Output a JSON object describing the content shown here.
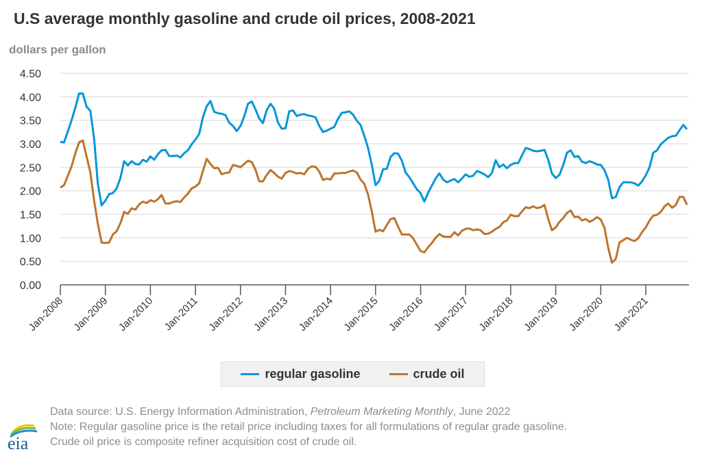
{
  "chart_data": {
    "type": "line",
    "title": "U.S average monthly gasoline and crude oil prices, 2008-2021",
    "ylabel": "dollars per gallon",
    "xlabel": "",
    "ylim": [
      0,
      4.5
    ],
    "yticks": [
      "0.00",
      "0.50",
      "1.00",
      "1.50",
      "2.00",
      "2.50",
      "3.00",
      "3.50",
      "4.00",
      "4.50"
    ],
    "ytick_values": [
      0,
      0.5,
      1.0,
      1.5,
      2.0,
      2.5,
      3.0,
      3.5,
      4.0,
      4.5
    ],
    "xticks": [
      "Jan-2008",
      "Jan-2009",
      "Jan-2010",
      "Jan-2011",
      "Jan-2012",
      "Jan-2013",
      "Jan-2014",
      "Jan-2015",
      "Jan-2016",
      "Jan-2017",
      "Jan-2018",
      "Jan-2019",
      "Jan-2020",
      "Jan-2021"
    ],
    "x_start": "Jan-2008",
    "x_end": "Dec-2021",
    "frequency": "monthly",
    "grid": true,
    "legend_position": "bottom-center",
    "series": [
      {
        "name": "regular gasoline",
        "color": "#0096d7",
        "values": [
          3.04,
          3.03,
          3.26,
          3.5,
          3.77,
          4.07,
          4.07,
          3.79,
          3.7,
          3.11,
          2.15,
          1.69,
          1.79,
          1.93,
          1.95,
          2.05,
          2.27,
          2.63,
          2.54,
          2.63,
          2.57,
          2.56,
          2.66,
          2.62,
          2.73,
          2.66,
          2.78,
          2.86,
          2.87,
          2.74,
          2.74,
          2.75,
          2.71,
          2.8,
          2.86,
          2.99,
          3.09,
          3.21,
          3.56,
          3.8,
          3.91,
          3.68,
          3.65,
          3.64,
          3.61,
          3.45,
          3.38,
          3.27,
          3.38,
          3.58,
          3.85,
          3.9,
          3.73,
          3.54,
          3.44,
          3.72,
          3.85,
          3.75,
          3.45,
          3.32,
          3.33,
          3.69,
          3.71,
          3.59,
          3.62,
          3.63,
          3.6,
          3.59,
          3.56,
          3.38,
          3.25,
          3.28,
          3.32,
          3.36,
          3.53,
          3.66,
          3.67,
          3.69,
          3.62,
          3.49,
          3.4,
          3.17,
          2.91,
          2.55,
          2.12,
          2.21,
          2.46,
          2.47,
          2.72,
          2.8,
          2.79,
          2.64,
          2.39,
          2.29,
          2.16,
          2.03,
          1.95,
          1.77,
          1.96,
          2.11,
          2.26,
          2.37,
          2.24,
          2.18,
          2.22,
          2.25,
          2.18,
          2.26,
          2.35,
          2.3,
          2.32,
          2.42,
          2.39,
          2.35,
          2.29,
          2.38,
          2.65,
          2.5,
          2.56,
          2.48,
          2.55,
          2.59,
          2.59,
          2.75,
          2.91,
          2.89,
          2.85,
          2.84,
          2.85,
          2.87,
          2.66,
          2.37,
          2.27,
          2.34,
          2.55,
          2.81,
          2.86,
          2.72,
          2.74,
          2.62,
          2.59,
          2.63,
          2.6,
          2.56,
          2.55,
          2.44,
          2.23,
          1.84,
          1.87,
          2.08,
          2.18,
          2.18,
          2.18,
          2.16,
          2.11,
          2.2,
          2.33,
          2.5,
          2.81,
          2.86,
          2.99,
          3.06,
          3.13,
          3.16,
          3.17,
          3.29,
          3.4,
          3.31
        ]
      },
      {
        "name": "crude oil",
        "color": "#bd732a",
        "values": [
          2.07,
          2.12,
          2.32,
          2.52,
          2.8,
          3.03,
          3.07,
          2.73,
          2.39,
          1.79,
          1.3,
          0.9,
          0.89,
          0.9,
          1.07,
          1.14,
          1.31,
          1.55,
          1.51,
          1.63,
          1.6,
          1.71,
          1.77,
          1.74,
          1.8,
          1.77,
          1.82,
          1.91,
          1.73,
          1.73,
          1.76,
          1.78,
          1.76,
          1.86,
          1.94,
          2.05,
          2.09,
          2.16,
          2.42,
          2.68,
          2.57,
          2.48,
          2.49,
          2.35,
          2.38,
          2.39,
          2.55,
          2.53,
          2.5,
          2.57,
          2.64,
          2.61,
          2.45,
          2.2,
          2.2,
          2.34,
          2.44,
          2.38,
          2.3,
          2.26,
          2.38,
          2.42,
          2.4,
          2.37,
          2.38,
          2.35,
          2.47,
          2.52,
          2.51,
          2.41,
          2.23,
          2.26,
          2.24,
          2.37,
          2.37,
          2.38,
          2.38,
          2.41,
          2.43,
          2.39,
          2.24,
          2.15,
          1.92,
          1.56,
          1.13,
          1.17,
          1.14,
          1.27,
          1.4,
          1.42,
          1.24,
          1.07,
          1.07,
          1.07,
          0.99,
          0.85,
          0.72,
          0.69,
          0.8,
          0.89,
          1.0,
          1.08,
          1.03,
          1.02,
          1.02,
          1.12,
          1.05,
          1.15,
          1.19,
          1.2,
          1.16,
          1.18,
          1.16,
          1.08,
          1.09,
          1.13,
          1.19,
          1.23,
          1.33,
          1.37,
          1.49,
          1.46,
          1.46,
          1.56,
          1.65,
          1.63,
          1.67,
          1.63,
          1.65,
          1.7,
          1.4,
          1.16,
          1.22,
          1.34,
          1.42,
          1.53,
          1.58,
          1.44,
          1.45,
          1.37,
          1.4,
          1.34,
          1.38,
          1.44,
          1.39,
          1.21,
          0.78,
          0.47,
          0.55,
          0.9,
          0.95,
          1.0,
          0.96,
          0.93,
          0.99,
          1.12,
          1.22,
          1.37,
          1.47,
          1.49,
          1.55,
          1.67,
          1.73,
          1.64,
          1.7,
          1.87,
          1.87,
          1.7
        ]
      }
    ]
  },
  "footer": {
    "source_prefix": "Data source: U.S. Energy Information Administration, ",
    "source_publication": "Petroleum Marketing Monthly",
    "source_suffix": ", June 2022",
    "note_line1": "Note: Regular gasoline price is the retail price including taxes for all formulations of regular grade gasoline.",
    "note_line2": "Crude oil price is composite refiner acquisition cost of crude oil.",
    "logo_text": "eia"
  },
  "colors": {
    "gasoline": "#0096d7",
    "crude": "#bd732a",
    "logo_text": "#1f5aa0"
  }
}
